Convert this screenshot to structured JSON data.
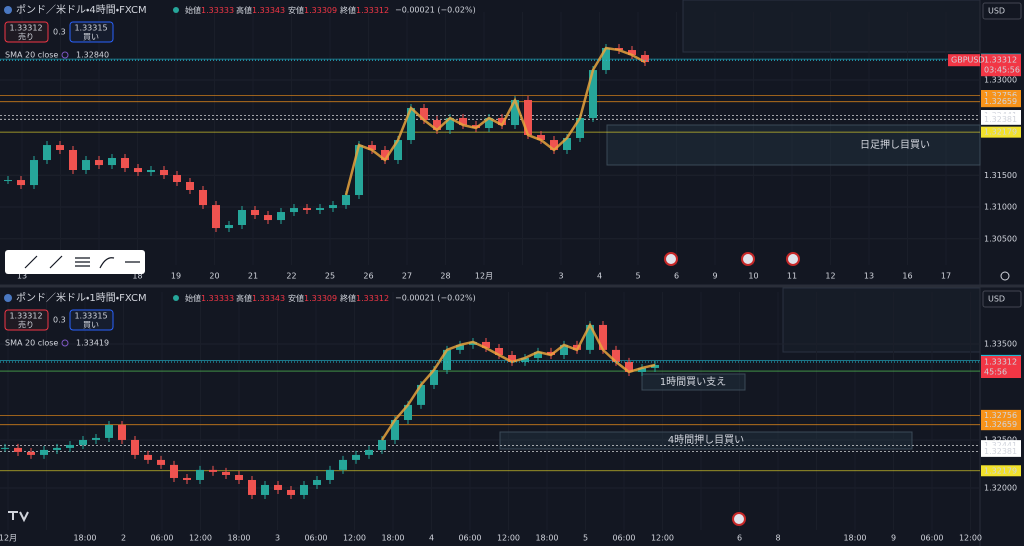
{
  "panels": [
    {
      "symbol": "ポンド／米ドル・4時間・FXCM",
      "ohlc": [
        {
          "label": "始値",
          "value": "1.33333"
        },
        {
          "label": "高値",
          "value": "1.33343"
        },
        {
          "label": "安値",
          "value": "1.33309"
        },
        {
          "label": "終値",
          "value": "1.33312"
        }
      ],
      "change": "−0.00021 (−0.02%)",
      "sell": {
        "price": "1.33312",
        "label": "売り"
      },
      "spread": "0.3",
      "buy": {
        "price": "1.33315",
        "label": "買い"
      },
      "sma": {
        "label": "SMA 20 close",
        "value": "1.32840"
      },
      "currency": "USD",
      "ylim": [
        1.30087,
        1.33945
      ],
      "yticks": [
        {
          "value": 1.33,
          "label": "1.33000"
        },
        {
          "value": 1.315,
          "label": "1.31500"
        },
        {
          "value": 1.31,
          "label": "1.31000"
        },
        {
          "value": 1.305,
          "label": "1.30500"
        }
      ],
      "xlabels": [
        "13",
        null,
        null,
        "18",
        "19",
        "20",
        "21",
        "22",
        "25",
        "26",
        "27",
        "28",
        "12月",
        null,
        "3",
        "4",
        "5",
        "6",
        "9",
        "10",
        "11",
        "12",
        "13",
        "16",
        "17"
      ],
      "closes": [
        1.31425,
        1.31346,
        1.3174,
        1.31976,
        1.31898,
        1.31583,
        1.3174,
        1.31661,
        1.31772,
        1.31614,
        1.31551,
        1.31583,
        1.31504,
        1.31394,
        1.31268,
        1.31031,
        1.30669,
        1.30717,
        1.30953,
        1.30874,
        1.30795,
        1.30921,
        1.30984,
        1.30953,
        1.30984,
        1.31031,
        1.31189,
        1.31976,
        1.31898,
        1.3174,
        1.32055,
        1.32559,
        1.3237,
        1.32213,
        1.32402,
        1.32291,
        1.32244,
        1.32402,
        1.32291,
        1.32685,
        1.32134,
        1.32055,
        1.31898,
        1.32087,
        1.32402,
        1.33157,
        1.33504,
        1.33472,
        1.33394,
        1.33283
      ],
      "levels": [
        {
          "value": 1.33329,
          "color": "#22b8cf"
        },
        {
          "value": 1.32756,
          "color": "#f7931a"
        },
        {
          "value": 1.32659,
          "color": "#f7931a"
        },
        {
          "value": 1.32441,
          "color": "#ffffff"
        },
        {
          "value": 1.32381,
          "color": "#ffffff"
        },
        {
          "value": 1.32179,
          "color": "#f2e22b"
        }
      ],
      "current": {
        "symbol": "GBPUSD",
        "price": 1.33312,
        "countdown": "03:45:56"
      },
      "annotations": [
        "日足押し目買い"
      ]
    },
    {
      "symbol": "ポンド／米ドル・1時間・FXCM",
      "ohlc": [
        {
          "label": "始値",
          "value": "1.33333"
        },
        {
          "label": "高値",
          "value": "1.33343"
        },
        {
          "label": "安値",
          "value": "1.33309"
        },
        {
          "label": "終値",
          "value": "1.33312"
        }
      ],
      "change": "−0.00021 (−0.02%)",
      "sell": {
        "price": "1.33312",
        "label": "売り"
      },
      "spread": "0.3",
      "buy": {
        "price": "1.33315",
        "label": "買い"
      },
      "sma": {
        "label": "SMA 20 close",
        "value": "1.33419"
      },
      "currency": "USD",
      "ylim": [
        1.31562,
        1.33958
      ],
      "yticks": [
        {
          "value": 1.335,
          "label": "1.33500"
        },
        {
          "value": 1.325,
          "label": "1.32500"
        },
        {
          "value": 1.32,
          "label": "1.32000"
        }
      ],
      "xlabels": [
        "12月",
        null,
        "18:00",
        "2",
        "06:00",
        "12:00",
        "18:00",
        "3",
        "06:00",
        "12:00",
        "18:00",
        "4",
        "06:00",
        "12:00",
        "18:00",
        "5",
        "06:00",
        "12:00",
        null,
        "6",
        "8",
        null,
        "18:00",
        "9",
        "06:00",
        "12:00"
      ],
      "closes": [
        1.32417,
        1.32375,
        1.32344,
        1.32396,
        1.32417,
        1.32448,
        1.325,
        1.32521,
        1.32656,
        1.325,
        1.32344,
        1.32292,
        1.3224,
        1.32104,
        1.32083,
        1.32188,
        1.32167,
        1.32135,
        1.32083,
        1.31927,
        1.32031,
        1.31979,
        1.31927,
        1.32031,
        1.32083,
        1.32188,
        1.32292,
        1.32344,
        1.32396,
        1.325,
        1.32708,
        1.32865,
        1.33073,
        1.33229,
        1.33438,
        1.3349,
        1.33521,
        1.33458,
        1.33385,
        1.33313,
        1.33354,
        1.33417,
        1.33385,
        1.3349,
        1.33438,
        1.33698,
        1.33438,
        1.33313,
        1.33208,
        1.3325,
        1.33281
      ],
      "levels": [
        {
          "value": 1.33329,
          "color": "#22b8cf"
        },
        {
          "value": 1.33217,
          "color": "#4caf50"
        },
        {
          "value": 1.33217,
          "color": "#4caf50"
        },
        {
          "value": 1.32756,
          "color": "#f7931a"
        },
        {
          "value": 1.32659,
          "color": "#f7931a"
        },
        {
          "value": 1.32441,
          "color": "#ffffff"
        },
        {
          "value": 1.32381,
          "color": "#ffffff"
        },
        {
          "value": 1.32179,
          "color": "#f2e22b"
        }
      ],
      "current": {
        "price": 1.33312,
        "countdown": "45:56"
      },
      "annotations": [
        "1時間買い支え",
        "4時間押し目買い"
      ]
    }
  ]
}
